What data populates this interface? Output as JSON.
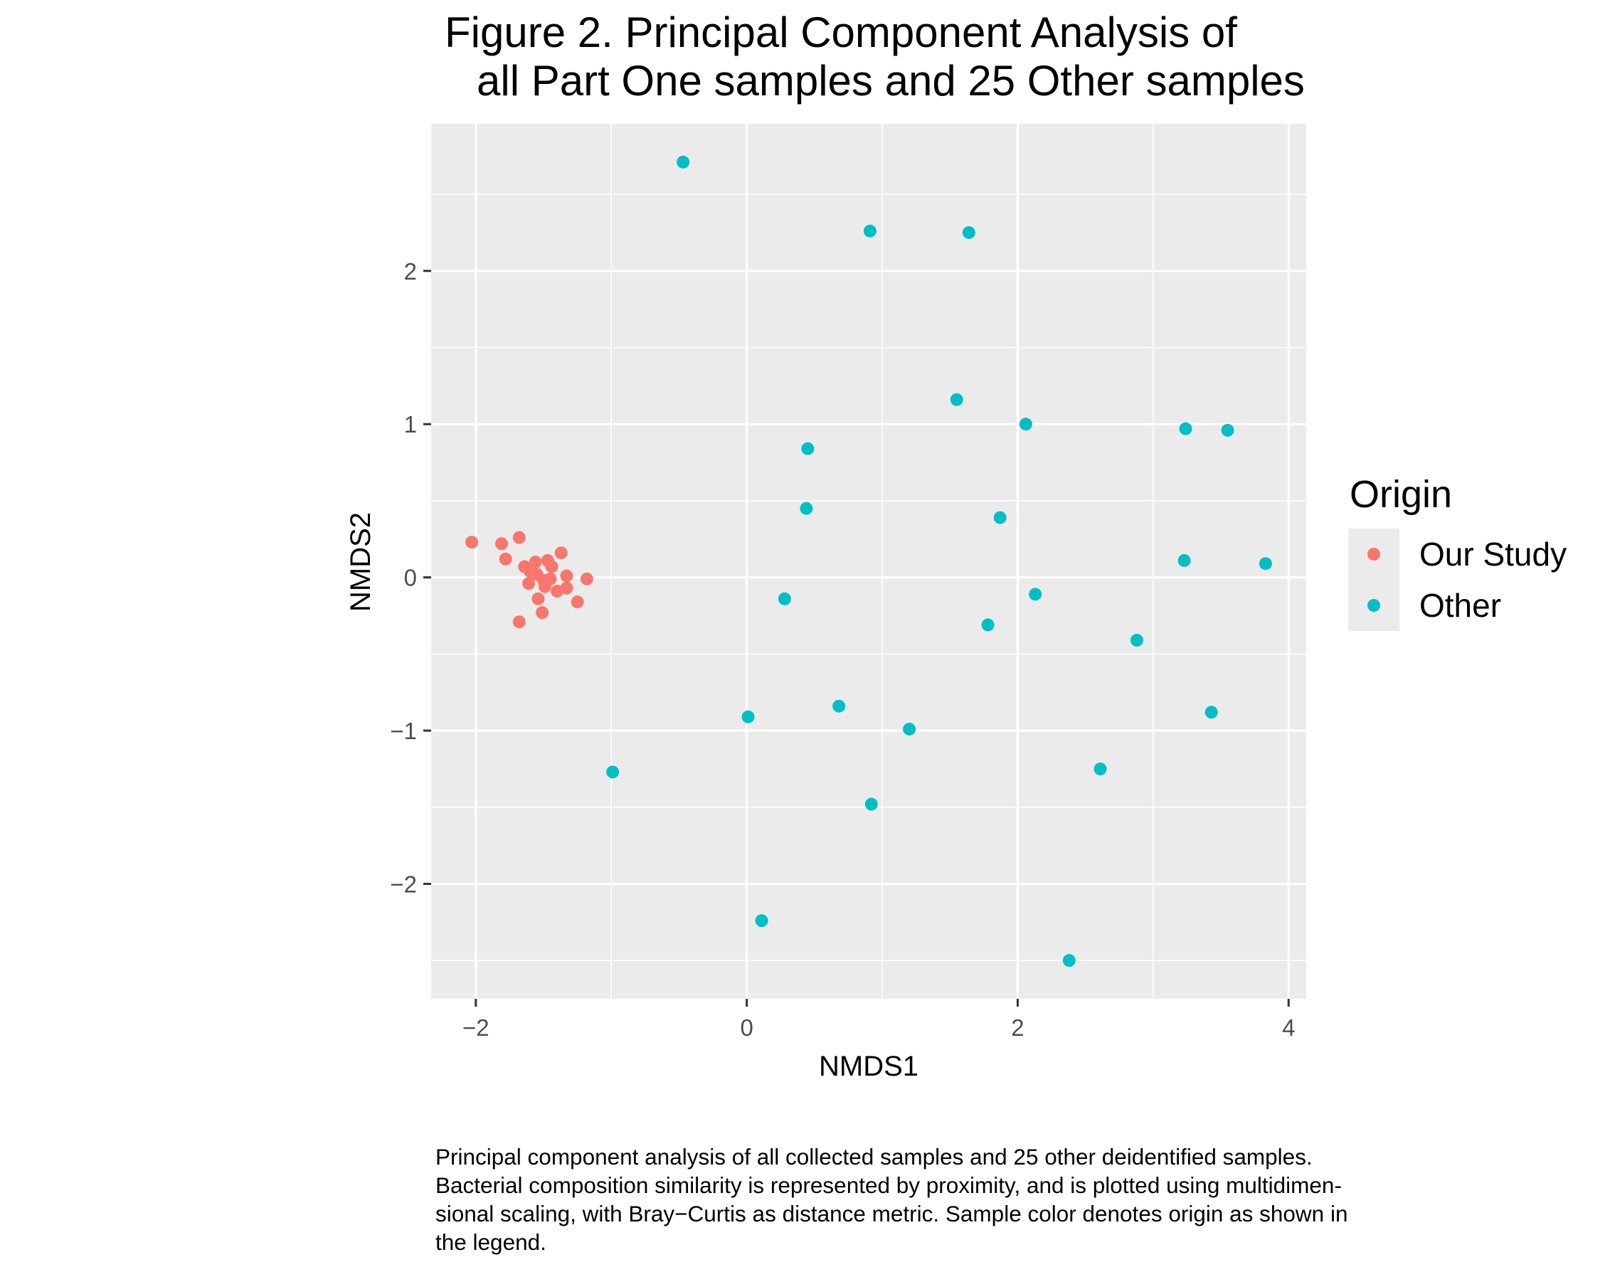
{
  "figure": {
    "title_line1": "Figure 2. Principal Component Analysis of",
    "title_line2": "all Part One samples and 25 Other samples",
    "caption_lines": [
      "Principal component analysis of all collected samples and 25 other deidentified samples.",
      "Bacterial composition similarity is represented by proximity, and is plotted using multidimen-",
      "sional scaling, with Bray−Curtis as distance metric. Sample color denotes origin as shown in",
      "the legend."
    ]
  },
  "legend": {
    "title": "Origin",
    "entries": [
      {
        "label": "Our Study",
        "color": "#F8766D"
      },
      {
        "label": "Other",
        "color": "#00BFC4"
      }
    ]
  },
  "chart_data": {
    "type": "scatter",
    "title": "",
    "xlabel": "NMDS1",
    "ylabel": "NMDS2",
    "xlim": [
      -2.33,
      4.13
    ],
    "ylim": [
      -2.75,
      2.96
    ],
    "xticks": [
      -2,
      0,
      2,
      4
    ],
    "yticks": [
      -2,
      -1,
      0,
      1,
      2
    ],
    "xtick_labels": [
      "−2",
      "0",
      "2",
      "4"
    ],
    "ytick_labels": [
      "−2",
      "−1",
      "0",
      "1",
      "2"
    ],
    "grid": true,
    "panel_background": "#EBEBEB",
    "legend_position": "right",
    "series": [
      {
        "name": "Our Study",
        "color": "#F8766D",
        "points": [
          [
            -2.03,
            0.23
          ],
          [
            -1.81,
            0.22
          ],
          [
            -1.68,
            0.26
          ],
          [
            -1.78,
            0.12
          ],
          [
            -1.64,
            0.07
          ],
          [
            -1.56,
            0.1
          ],
          [
            -1.6,
            0.04
          ],
          [
            -1.55,
            0.02
          ],
          [
            -1.47,
            0.11
          ],
          [
            -1.44,
            0.07
          ],
          [
            -1.37,
            0.16
          ],
          [
            -1.33,
            0.01
          ],
          [
            -1.18,
            -0.01
          ],
          [
            -1.61,
            -0.04
          ],
          [
            -1.5,
            -0.02
          ],
          [
            -1.45,
            -0.01
          ],
          [
            -1.49,
            -0.06
          ],
          [
            -1.4,
            -0.09
          ],
          [
            -1.33,
            -0.07
          ],
          [
            -1.54,
            -0.14
          ],
          [
            -1.25,
            -0.16
          ],
          [
            -1.51,
            -0.23
          ],
          [
            -1.68,
            -0.29
          ]
        ]
      },
      {
        "name": "Other",
        "color": "#00BFC4",
        "points": [
          [
            -0.47,
            2.71
          ],
          [
            0.91,
            2.26
          ],
          [
            1.64,
            2.25
          ],
          [
            1.55,
            1.16
          ],
          [
            2.06,
            1.0
          ],
          [
            3.24,
            0.97
          ],
          [
            3.55,
            0.96
          ],
          [
            0.45,
            0.84
          ],
          [
            0.44,
            0.45
          ],
          [
            1.87,
            0.39
          ],
          [
            3.23,
            0.11
          ],
          [
            3.83,
            0.09
          ],
          [
            2.13,
            -0.11
          ],
          [
            0.28,
            -0.14
          ],
          [
            1.78,
            -0.31
          ],
          [
            2.88,
            -0.41
          ],
          [
            0.68,
            -0.84
          ],
          [
            3.43,
            -0.88
          ],
          [
            0.01,
            -0.91
          ],
          [
            1.2,
            -0.99
          ],
          [
            -0.99,
            -1.27
          ],
          [
            2.61,
            -1.25
          ],
          [
            0.92,
            -1.48
          ],
          [
            0.11,
            -2.24
          ],
          [
            2.38,
            -2.5
          ]
        ]
      }
    ]
  }
}
